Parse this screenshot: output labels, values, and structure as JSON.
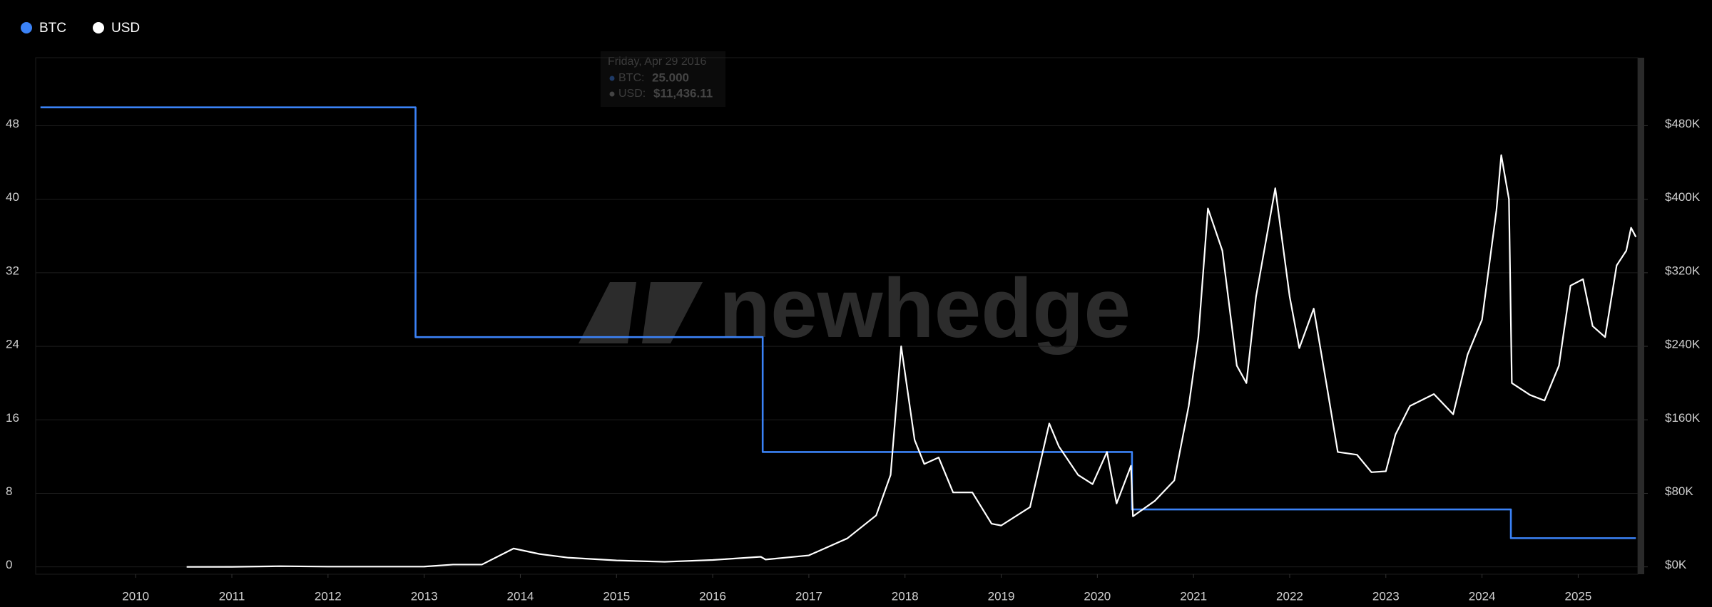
{
  "chart_data": {
    "type": "line",
    "watermark": "newhedge",
    "tooltip": {
      "date": "Friday, Apr 29 2016",
      "btc_label": "BTC:",
      "btc_value": "25.000",
      "usd_label": "USD:",
      "usd_value": "$11,436.11"
    },
    "xlim": [
      2008.96,
      2025.62
    ],
    "xticks": [
      2010,
      2011,
      2012,
      2013,
      2014,
      2015,
      2016,
      2017,
      2018,
      2019,
      2020,
      2021,
      2022,
      2023,
      2024,
      2025
    ],
    "ylim": [
      -0.8,
      55.4
    ],
    "yticks": [
      0,
      8,
      16,
      24,
      32,
      40,
      48
    ],
    "y2lim": [
      -8000,
      554000
    ],
    "y2ticks": [
      {
        "value": 0,
        "label": "$0K"
      },
      {
        "value": 80000,
        "label": "$80K"
      },
      {
        "value": 160000,
        "label": "$160K"
      },
      {
        "value": 240000,
        "label": "$240K"
      },
      {
        "value": 320000,
        "label": "$320K"
      },
      {
        "value": 400000,
        "label": "$400K"
      },
      {
        "value": 480000,
        "label": "$480K"
      }
    ],
    "grid": true,
    "legend": "top-left",
    "series": [
      {
        "name": "BTC",
        "color": "#3b82f6",
        "axis": "y",
        "x": [
          2009.01,
          2012.91,
          2012.91,
          2016.52,
          2016.52,
          2020.36,
          2020.36,
          2024.3,
          2024.3,
          2025.6
        ],
        "values": [
          50,
          50,
          25,
          25,
          12.5,
          12.5,
          6.25,
          6.25,
          3.125,
          3.125
        ]
      },
      {
        "name": "USD",
        "color": "#ffffff",
        "axis": "y2",
        "x": [
          2010.53,
          2011.0,
          2011.5,
          2012.0,
          2012.5,
          2012.9,
          2013.0,
          2013.3,
          2013.6,
          2013.93,
          2014.2,
          2014.5,
          2015.0,
          2015.5,
          2016.0,
          2016.5,
          2016.55,
          2017.0,
          2017.4,
          2017.7,
          2017.85,
          2017.96,
          2018.1,
          2018.2,
          2018.35,
          2018.5,
          2018.7,
          2018.9,
          2019.0,
          2019.3,
          2019.5,
          2019.6,
          2019.8,
          2019.95,
          2020.1,
          2020.2,
          2020.35,
          2020.37,
          2020.6,
          2020.8,
          2020.95,
          2021.05,
          2021.15,
          2021.3,
          2021.45,
          2021.55,
          2021.65,
          2021.85,
          2022.0,
          2022.1,
          2022.25,
          2022.4,
          2022.5,
          2022.7,
          2022.85,
          2023.0,
          2023.1,
          2023.25,
          2023.5,
          2023.7,
          2023.85,
          2024.0,
          2024.15,
          2024.2,
          2024.28,
          2024.31,
          2024.5,
          2024.65,
          2024.8,
          2024.92,
          2025.05,
          2025.15,
          2025.28,
          2025.4,
          2025.5,
          2025.55,
          2025.6
        ],
        "values": [
          5,
          30,
          750,
          300,
          300,
          300,
          325,
          2500,
          2500,
          20000,
          14000,
          10000,
          7000,
          5500,
          7500,
          11000,
          8000,
          12500,
          31000,
          56000,
          100000,
          240000,
          138000,
          112000,
          119000,
          81000,
          81000,
          47000,
          45000,
          65000,
          156000,
          131000,
          100000,
          90000,
          125000,
          69000,
          110000,
          55000,
          72000,
          94000,
          175000,
          250000,
          390000,
          344000,
          219000,
          200000,
          294000,
          412000,
          294000,
          238000,
          281000,
          188000,
          125000,
          122000,
          103000,
          104000,
          144000,
          175000,
          188000,
          166000,
          231000,
          269000,
          388000,
          448000,
          400000,
          200000,
          187000,
          181000,
          219000,
          306000,
          313000,
          262000,
          250000,
          328000,
          344000,
          369000,
          359000
        ]
      }
    ]
  }
}
